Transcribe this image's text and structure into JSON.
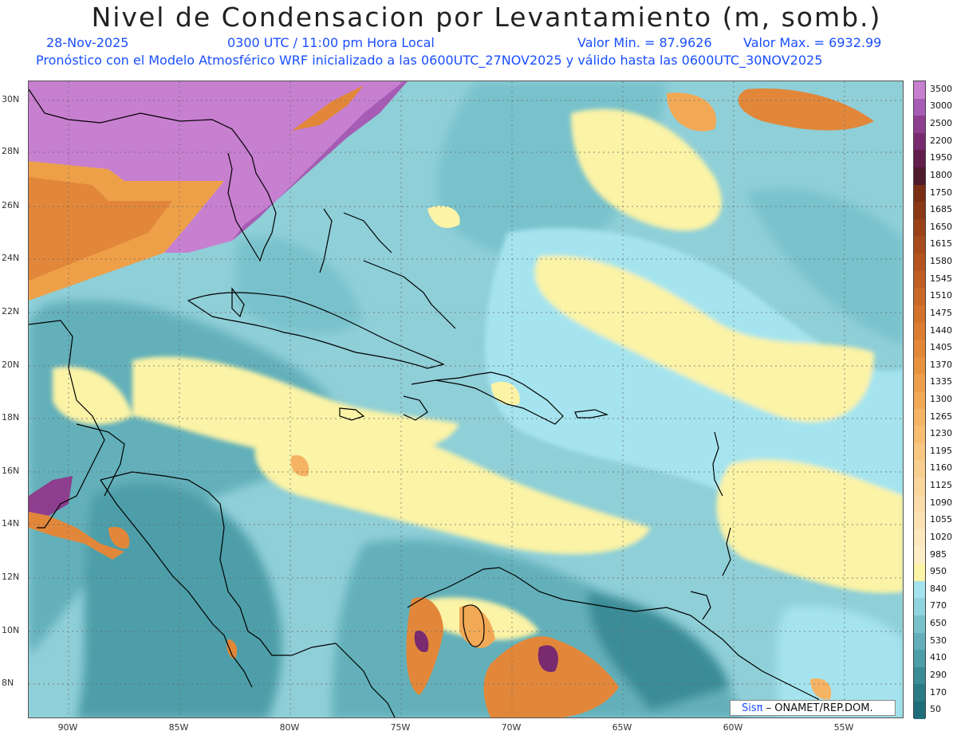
{
  "header": {
    "title": "Nivel de Condensacion por Levantamiento (m, somb.)",
    "date": "28-Nov-2025",
    "time": "0300 UTC / 11:00 pm Hora Local",
    "vmin": "Valor Min. = 87.9626",
    "vmax": "Valor Max. = 6932.99",
    "model_line": "Pronóstico con el Modelo Atmosférico WRF inicializado a las 0600UTC_27NOV2025 y válido hasta las  0600UTC_30NOV2025"
  },
  "axes": {
    "lat_labels": [
      "30N",
      "28N",
      "26N",
      "24N",
      "22N",
      "20N",
      "18N",
      "16N",
      "14N",
      "12N",
      "10N",
      "8N"
    ],
    "lon_labels": [
      "90W",
      "85W",
      "80W",
      "75W",
      "70W",
      "65W",
      "60W",
      "55W"
    ]
  },
  "colorbar": {
    "labels": [
      "3500",
      "3000",
      "2500",
      "2200",
      "1950",
      "1800",
      "1750",
      "1685",
      "1650",
      "1615",
      "1580",
      "1545",
      "1510",
      "1475",
      "1440",
      "1405",
      "1370",
      "1335",
      "1300",
      "1265",
      "1230",
      "1195",
      "1160",
      "1125",
      "1090",
      "1055",
      "1020",
      "985",
      "950",
      "840",
      "770",
      "650",
      "530",
      "410",
      "290",
      "170",
      "50"
    ],
    "colors": [
      "#c77fd0",
      "#a65cb4",
      "#8e3e8f",
      "#7a2a6e",
      "#631d4c",
      "#4e1a2c",
      "#7a2f14",
      "#8a3815",
      "#9a4118",
      "#a84b1c",
      "#b5541e",
      "#c05e22",
      "#ca6827",
      "#d3722b",
      "#db7c30",
      "#e28736",
      "#e9923d",
      "#ee9e48",
      "#f2a955",
      "#f5b464",
      "#f7be72",
      "#f8c781",
      "#f9cf8f",
      "#fad69c",
      "#fbdca8",
      "#fce2b3",
      "#fde8bd",
      "#fdedc6",
      "#fbf3a6",
      "#a5e4ee",
      "#8fd4de",
      "#79c2cc",
      "#63b0ba",
      "#4d9ea8",
      "#3b8c97",
      "#2c7a86",
      "#1f6d7a"
    ]
  },
  "credit": {
    "sis": "Sisπ",
    "rest": "– ONAMET/REP.DOM."
  }
}
